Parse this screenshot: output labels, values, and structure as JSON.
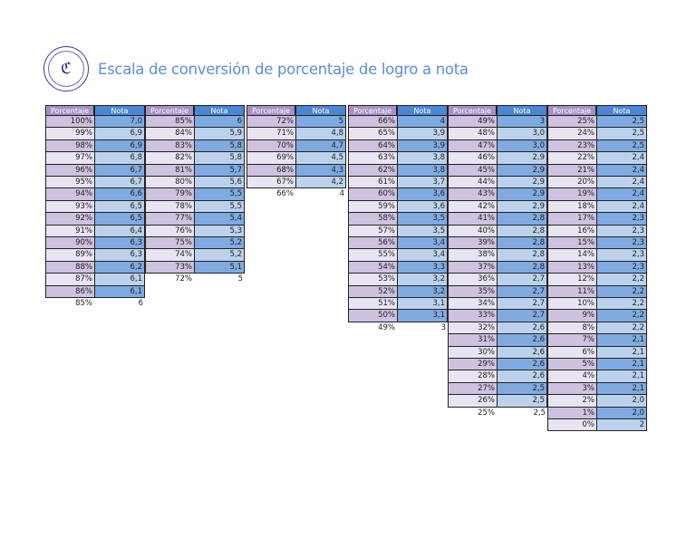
{
  "header": {
    "logo": "school-crest-logo",
    "logo_text": "ℭ",
    "title": "Escala de conversión de porcentaje de logro a nota"
  },
  "table": {
    "header_pct": "Porcentaje",
    "header_nota": "Nota",
    "colors": {
      "header_pct": "#a691c4",
      "header_nota": "#4a86d4",
      "pct_dark": "#cfc1e0",
      "pct_light": "#e9e4f1",
      "nota_dark": "#7fabe2",
      "nota_light": "#bcd2ec",
      "title": "#5b8fd6"
    },
    "groups": [
      {
        "rows": [
          [
            "100%",
            "7,0"
          ],
          [
            "99%",
            "6,9"
          ],
          [
            "98%",
            "6,9"
          ],
          [
            "97%",
            "6,8"
          ],
          [
            "96%",
            "6,7"
          ],
          [
            "95%",
            "6,7"
          ],
          [
            "94%",
            "6,6"
          ],
          [
            "93%",
            "6,5"
          ],
          [
            "92%",
            "6,5"
          ],
          [
            "91%",
            "6,4"
          ],
          [
            "90%",
            "6,3"
          ],
          [
            "89%",
            "6,3"
          ],
          [
            "88%",
            "6,2"
          ],
          [
            "87%",
            "6,1"
          ],
          [
            "86%",
            "6,1"
          ]
        ],
        "trailing": [
          "85%",
          "6"
        ]
      },
      {
        "rows": [
          [
            "85%",
            "6"
          ],
          [
            "84%",
            "5,9"
          ],
          [
            "83%",
            "5,8"
          ],
          [
            "82%",
            "5,8"
          ],
          [
            "81%",
            "5,7"
          ],
          [
            "80%",
            "5,6"
          ],
          [
            "79%",
            "5,5"
          ],
          [
            "78%",
            "5,5"
          ],
          [
            "77%",
            "5,4"
          ],
          [
            "76%",
            "5,3"
          ],
          [
            "75%",
            "5,2"
          ],
          [
            "74%",
            "5,2"
          ],
          [
            "73%",
            "5,1"
          ]
        ],
        "trailing": [
          "72%",
          "5"
        ]
      },
      {
        "rows": [
          [
            "72%",
            "5"
          ],
          [
            "71%",
            "4,8"
          ],
          [
            "70%",
            "4,7"
          ],
          [
            "69%",
            "4,5"
          ],
          [
            "68%",
            "4,3"
          ],
          [
            "67%",
            "4,2"
          ]
        ],
        "trailing": [
          "66%",
          "4"
        ]
      },
      {
        "rows": [
          [
            "66%",
            "4"
          ],
          [
            "65%",
            "3,9"
          ],
          [
            "64%",
            "3,9"
          ],
          [
            "63%",
            "3,8"
          ],
          [
            "62%",
            "3,8"
          ],
          [
            "61%",
            "3,7"
          ],
          [
            "60%",
            "3,6"
          ],
          [
            "59%",
            "3,6"
          ],
          [
            "58%",
            "3,5"
          ],
          [
            "57%",
            "3,5"
          ],
          [
            "56%",
            "3,4"
          ],
          [
            "55%",
            "3,4"
          ],
          [
            "54%",
            "3,3"
          ],
          [
            "53%",
            "3,2"
          ],
          [
            "52%",
            "3,2"
          ],
          [
            "51%",
            "3,1"
          ],
          [
            "50%",
            "3,1"
          ]
        ],
        "trailing": [
          "49%",
          "3"
        ]
      },
      {
        "rows": [
          [
            "49%",
            "3"
          ],
          [
            "48%",
            "3,0"
          ],
          [
            "47%",
            "3,0"
          ],
          [
            "46%",
            "2,9"
          ],
          [
            "45%",
            "2,9"
          ],
          [
            "44%",
            "2,9"
          ],
          [
            "43%",
            "2,9"
          ],
          [
            "42%",
            "2,9"
          ],
          [
            "41%",
            "2,8"
          ],
          [
            "40%",
            "2,8"
          ],
          [
            "39%",
            "2,8"
          ],
          [
            "38%",
            "2,8"
          ],
          [
            "37%",
            "2,8"
          ],
          [
            "36%",
            "2,7"
          ],
          [
            "35%",
            "2,7"
          ],
          [
            "34%",
            "2,7"
          ],
          [
            "33%",
            "2,7"
          ],
          [
            "32%",
            "2,6"
          ],
          [
            "31%",
            "2,6"
          ],
          [
            "30%",
            "2,6"
          ],
          [
            "29%",
            "2,6"
          ],
          [
            "28%",
            "2,6"
          ],
          [
            "27%",
            "2,5"
          ],
          [
            "26%",
            "2,5"
          ]
        ],
        "trailing": [
          "25%",
          "2,5"
        ]
      },
      {
        "rows": [
          [
            "25%",
            "2,5"
          ],
          [
            "24%",
            "2,5"
          ],
          [
            "23%",
            "2,5"
          ],
          [
            "22%",
            "2,4"
          ],
          [
            "21%",
            "2,4"
          ],
          [
            "20%",
            "2,4"
          ],
          [
            "19%",
            "2,4"
          ],
          [
            "18%",
            "2,4"
          ],
          [
            "17%",
            "2,3"
          ],
          [
            "16%",
            "2,3"
          ],
          [
            "15%",
            "2,3"
          ],
          [
            "14%",
            "2,3"
          ],
          [
            "13%",
            "2,3"
          ],
          [
            "12%",
            "2,2"
          ],
          [
            "11%",
            "2,2"
          ],
          [
            "10%",
            "2,2"
          ],
          [
            "9%",
            "2,2"
          ],
          [
            "8%",
            "2,2"
          ],
          [
            "7%",
            "2,1"
          ],
          [
            "6%",
            "2,1"
          ],
          [
            "5%",
            "2,1"
          ],
          [
            "4%",
            "2,1"
          ],
          [
            "3%",
            "2,1"
          ],
          [
            "2%",
            "2,0"
          ],
          [
            "1%",
            "2,0"
          ],
          [
            "0%",
            "2"
          ]
        ],
        "trailing": null
      }
    ]
  }
}
